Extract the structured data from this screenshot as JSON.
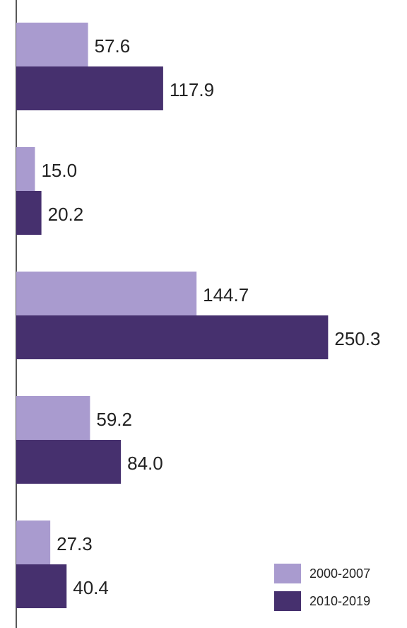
{
  "chart_data": {
    "type": "barh",
    "categories": [
      null,
      null,
      null,
      null,
      null
    ],
    "series": [
      {
        "name": "2000-2007",
        "color": "#a99bcf",
        "values": [
          57.6,
          15.0,
          144.7,
          59.2,
          27.3
        ],
        "value_labels": [
          "57.6",
          "15.0",
          "144.7",
          "59.2",
          "27.3"
        ]
      },
      {
        "name": "2010-2019",
        "color": "#46306e",
        "values": [
          117.9,
          20.2,
          250.3,
          84.0,
          40.4
        ],
        "value_labels": [
          "117.9",
          "20.2",
          "250.3",
          "84.0",
          "40.4"
        ]
      }
    ],
    "xlim": [
      0,
      300
    ],
    "legend": "lower right"
  }
}
